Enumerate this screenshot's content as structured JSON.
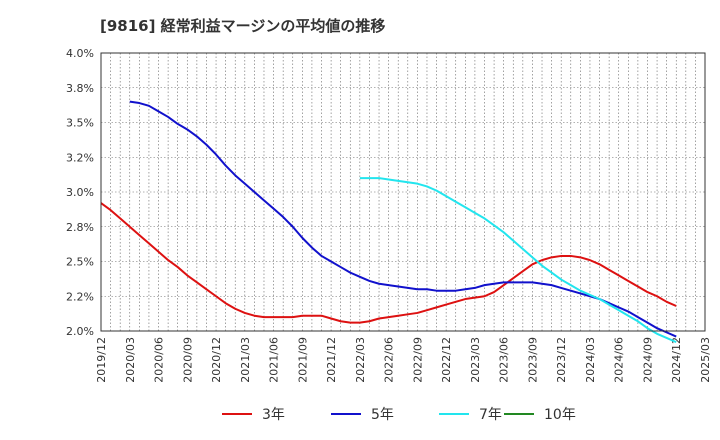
{
  "chart_data": {
    "type": "line",
    "title": "[9816]  経常利益マージンの平均値の推移",
    "xlabel": "",
    "ylabel": "",
    "ylim": [
      0.02,
      0.04
    ],
    "y_ticks": [
      {
        "value": 0.04,
        "label": "4.0%"
      },
      {
        "value": 0.0375,
        "label": "3.8%"
      },
      {
        "value": 0.035,
        "label": "3.5%"
      },
      {
        "value": 0.0325,
        "label": "3.2%"
      },
      {
        "value": 0.03,
        "label": "3.0%"
      },
      {
        "value": 0.0275,
        "label": "2.8%"
      },
      {
        "value": 0.025,
        "label": "2.5%"
      },
      {
        "value": 0.0225,
        "label": "2.2%"
      },
      {
        "value": 0.02,
        "label": "2.0%"
      }
    ],
    "x_ticks": [
      "2019/12",
      "2020/03",
      "2020/06",
      "2020/09",
      "2020/12",
      "2021/03",
      "2021/06",
      "2021/09",
      "2021/12",
      "2022/03",
      "2022/06",
      "2022/09",
      "2022/12",
      "2023/03",
      "2023/06",
      "2023/09",
      "2023/12",
      "2024/03",
      "2024/06",
      "2024/09",
      "2024/12",
      "2025/03"
    ],
    "grid": true,
    "legend_position": "bottom",
    "series": [
      {
        "name": "3年",
        "color": "#dd1111",
        "points": [
          [
            "2019/12",
            0.0292
          ],
          [
            "2020/01",
            0.0287
          ],
          [
            "2020/02",
            0.0281
          ],
          [
            "2020/03",
            0.0275
          ],
          [
            "2020/04",
            0.0269
          ],
          [
            "2020/05",
            0.0263
          ],
          [
            "2020/06",
            0.0257
          ],
          [
            "2020/07",
            0.0251
          ],
          [
            "2020/08",
            0.0246
          ],
          [
            "2020/09",
            0.024
          ],
          [
            "2020/10",
            0.0235
          ],
          [
            "2020/11",
            0.023
          ],
          [
            "2020/12",
            0.0225
          ],
          [
            "2021/01",
            0.022
          ],
          [
            "2021/02",
            0.0216
          ],
          [
            "2021/03",
            0.0213
          ],
          [
            "2021/04",
            0.0211
          ],
          [
            "2021/05",
            0.021
          ],
          [
            "2021/06",
            0.021
          ],
          [
            "2021/07",
            0.021
          ],
          [
            "2021/08",
            0.021
          ],
          [
            "2021/09",
            0.0211
          ],
          [
            "2021/10",
            0.0211
          ],
          [
            "2021/11",
            0.0211
          ],
          [
            "2021/12",
            0.0209
          ],
          [
            "2022/01",
            0.0207
          ],
          [
            "2022/02",
            0.0206
          ],
          [
            "2022/03",
            0.0206
          ],
          [
            "2022/04",
            0.0207
          ],
          [
            "2022/05",
            0.0209
          ],
          [
            "2022/06",
            0.021
          ],
          [
            "2022/07",
            0.0211
          ],
          [
            "2022/08",
            0.0212
          ],
          [
            "2022/09",
            0.0213
          ],
          [
            "2022/10",
            0.0215
          ],
          [
            "2022/11",
            0.0217
          ],
          [
            "2022/12",
            0.0219
          ],
          [
            "2023/01",
            0.0221
          ],
          [
            "2023/02",
            0.0223
          ],
          [
            "2023/03",
            0.0224
          ],
          [
            "2023/04",
            0.0225
          ],
          [
            "2023/05",
            0.0228
          ],
          [
            "2023/06",
            0.0233
          ],
          [
            "2023/07",
            0.0238
          ],
          [
            "2023/08",
            0.0243
          ],
          [
            "2023/09",
            0.0248
          ],
          [
            "2023/10",
            0.0251
          ],
          [
            "2023/11",
            0.0253
          ],
          [
            "2023/12",
            0.0254
          ],
          [
            "2024/01",
            0.0254
          ],
          [
            "2024/02",
            0.0253
          ],
          [
            "2024/03",
            0.0251
          ],
          [
            "2024/04",
            0.0248
          ],
          [
            "2024/05",
            0.0244
          ],
          [
            "2024/06",
            0.024
          ],
          [
            "2024/07",
            0.0236
          ],
          [
            "2024/08",
            0.0232
          ],
          [
            "2024/09",
            0.0228
          ],
          [
            "2024/10",
            0.0225
          ],
          [
            "2024/11",
            0.0221
          ],
          [
            "2024/12",
            0.0218
          ]
        ]
      },
      {
        "name": "5年",
        "color": "#1111cc",
        "points": [
          [
            "2020/03",
            0.0365
          ],
          [
            "2020/04",
            0.0364
          ],
          [
            "2020/05",
            0.0362
          ],
          [
            "2020/06",
            0.0358
          ],
          [
            "2020/07",
            0.0354
          ],
          [
            "2020/08",
            0.0349
          ],
          [
            "2020/09",
            0.0345
          ],
          [
            "2020/10",
            0.034
          ],
          [
            "2020/11",
            0.0334
          ],
          [
            "2020/12",
            0.0327
          ],
          [
            "2021/01",
            0.0319
          ],
          [
            "2021/02",
            0.0312
          ],
          [
            "2021/03",
            0.0306
          ],
          [
            "2021/04",
            0.03
          ],
          [
            "2021/05",
            0.0294
          ],
          [
            "2021/06",
            0.0288
          ],
          [
            "2021/07",
            0.0282
          ],
          [
            "2021/08",
            0.0275
          ],
          [
            "2021/09",
            0.0267
          ],
          [
            "2021/10",
            0.026
          ],
          [
            "2021/11",
            0.0254
          ],
          [
            "2021/12",
            0.025
          ],
          [
            "2022/01",
            0.0246
          ],
          [
            "2022/02",
            0.0242
          ],
          [
            "2022/03",
            0.0239
          ],
          [
            "2022/04",
            0.0236
          ],
          [
            "2022/05",
            0.0234
          ],
          [
            "2022/06",
            0.0233
          ],
          [
            "2022/07",
            0.0232
          ],
          [
            "2022/08",
            0.0231
          ],
          [
            "2022/09",
            0.023
          ],
          [
            "2022/10",
            0.023
          ],
          [
            "2022/11",
            0.0229
          ],
          [
            "2022/12",
            0.0229
          ],
          [
            "2023/01",
            0.0229
          ],
          [
            "2023/02",
            0.023
          ],
          [
            "2023/03",
            0.0231
          ],
          [
            "2023/04",
            0.0233
          ],
          [
            "2023/05",
            0.0234
          ],
          [
            "2023/06",
            0.0235
          ],
          [
            "2023/07",
            0.0235
          ],
          [
            "2023/08",
            0.0235
          ],
          [
            "2023/09",
            0.0235
          ],
          [
            "2023/10",
            0.0234
          ],
          [
            "2023/11",
            0.0233
          ],
          [
            "2023/12",
            0.0231
          ],
          [
            "2024/01",
            0.0229
          ],
          [
            "2024/02",
            0.0227
          ],
          [
            "2024/03",
            0.0225
          ],
          [
            "2024/04",
            0.0223
          ],
          [
            "2024/05",
            0.022
          ],
          [
            "2024/06",
            0.0217
          ],
          [
            "2024/07",
            0.0214
          ],
          [
            "2024/08",
            0.021
          ],
          [
            "2024/09",
            0.0206
          ],
          [
            "2024/10",
            0.0202
          ],
          [
            "2024/11",
            0.0199
          ],
          [
            "2024/12",
            0.0196
          ]
        ]
      },
      {
        "name": "7年",
        "color": "#22e5ee",
        "points": [
          [
            "2022/03",
            0.031
          ],
          [
            "2022/04",
            0.031
          ],
          [
            "2022/05",
            0.031
          ],
          [
            "2022/06",
            0.0309
          ],
          [
            "2022/07",
            0.0308
          ],
          [
            "2022/08",
            0.0307
          ],
          [
            "2022/09",
            0.0306
          ],
          [
            "2022/10",
            0.0304
          ],
          [
            "2022/11",
            0.0301
          ],
          [
            "2022/12",
            0.0297
          ],
          [
            "2023/01",
            0.0293
          ],
          [
            "2023/02",
            0.0289
          ],
          [
            "2023/03",
            0.0285
          ],
          [
            "2023/04",
            0.0281
          ],
          [
            "2023/05",
            0.0276
          ],
          [
            "2023/06",
            0.0271
          ],
          [
            "2023/07",
            0.0265
          ],
          [
            "2023/08",
            0.0259
          ],
          [
            "2023/09",
            0.0253
          ],
          [
            "2023/10",
            0.0247
          ],
          [
            "2023/11",
            0.0242
          ],
          [
            "2023/12",
            0.0237
          ],
          [
            "2024/01",
            0.0233
          ],
          [
            "2024/02",
            0.0229
          ],
          [
            "2024/03",
            0.0226
          ],
          [
            "2024/04",
            0.0223
          ],
          [
            "2024/05",
            0.0219
          ],
          [
            "2024/06",
            0.0215
          ],
          [
            "2024/07",
            0.0211
          ],
          [
            "2024/08",
            0.0207
          ],
          [
            "2024/09",
            0.0202
          ],
          [
            "2024/10",
            0.0198
          ],
          [
            "2024/11",
            0.0195
          ],
          [
            "2024/12",
            0.0192
          ]
        ]
      },
      {
        "name": "10年",
        "color": "#228822",
        "points": []
      }
    ]
  }
}
